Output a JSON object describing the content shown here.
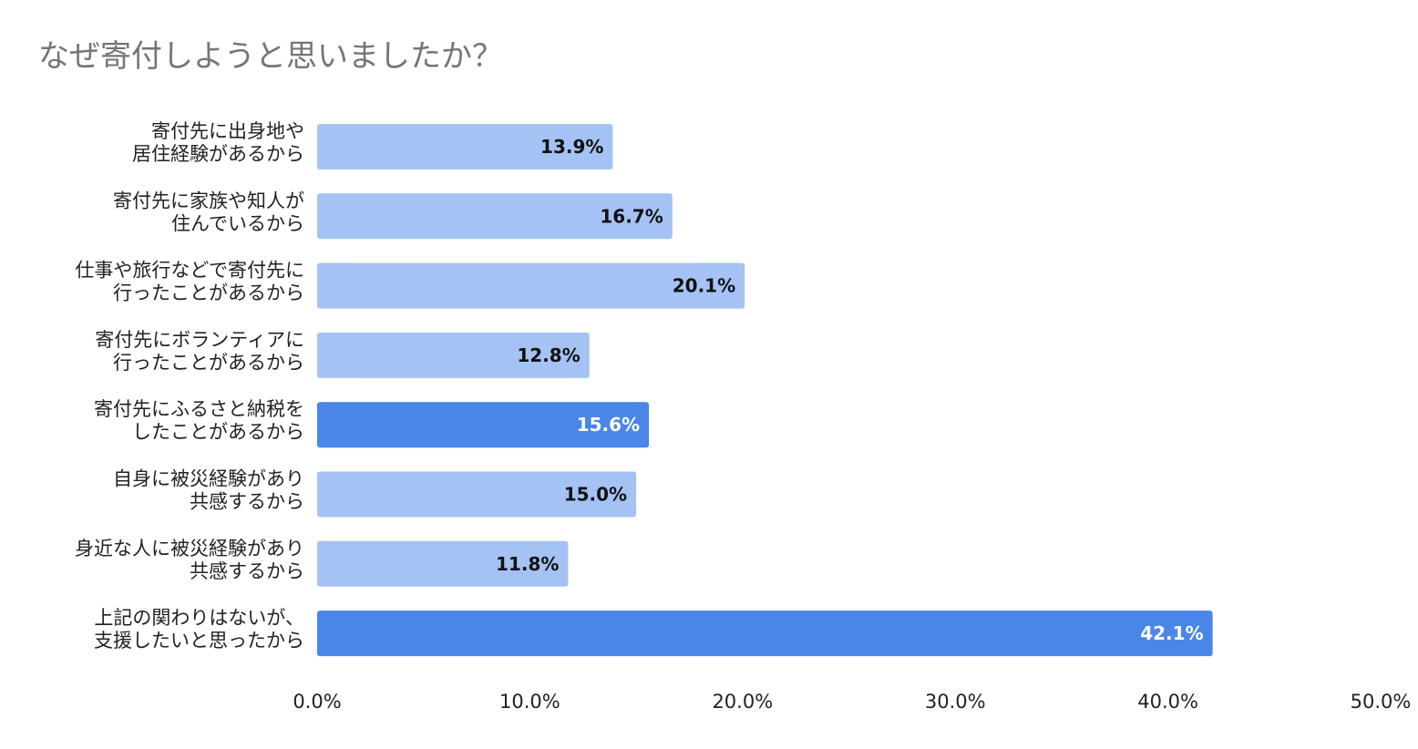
{
  "chart_data": {
    "type": "bar",
    "orientation": "horizontal",
    "title": "なぜ寄付しようと思いましたか？",
    "xlabel": "",
    "ylabel": "",
    "categories": [
      [
        "寄付先に出身地や",
        "居住経験があるから"
      ],
      [
        "寄付先に家族や知人が",
        "住んでいるから"
      ],
      [
        "仕事や旅行などで寄付先に",
        "行ったことがあるから"
      ],
      [
        "寄付先にボランティアに",
        "行ったことがあるから"
      ],
      [
        "寄付先にふるさと納税を",
        "したことがあるから"
      ],
      [
        "自身に被災経験があり",
        "共感するから"
      ],
      [
        "身近な人に被災経験があり",
        "共感するから"
      ],
      [
        "上記の関わりはないが、",
        "支援したいと思ったから"
      ]
    ],
    "values": [
      13.9,
      16.7,
      20.1,
      12.8,
      15.6,
      15.0,
      11.8,
      42.1
    ],
    "value_labels": [
      "13.9%",
      "16.7%",
      "20.1%",
      "12.8%",
      "15.6%",
      "15.0%",
      "11.8%",
      "42.1%"
    ],
    "highlighted": [
      false,
      false,
      false,
      false,
      true,
      false,
      false,
      true
    ],
    "xlim": [
      0,
      50
    ],
    "ticks": [
      0,
      10,
      20,
      30,
      40,
      50
    ],
    "tick_labels": [
      "0.0%",
      "10.0%",
      "20.0%",
      "30.0%",
      "40.0%",
      "50.0%"
    ],
    "grid": false,
    "legend": "none",
    "colors": {
      "bar": "#a4c2f4",
      "bar_highlight": "#4a86e8",
      "label_dark": "#111111",
      "label_light": "#ffffff"
    }
  }
}
